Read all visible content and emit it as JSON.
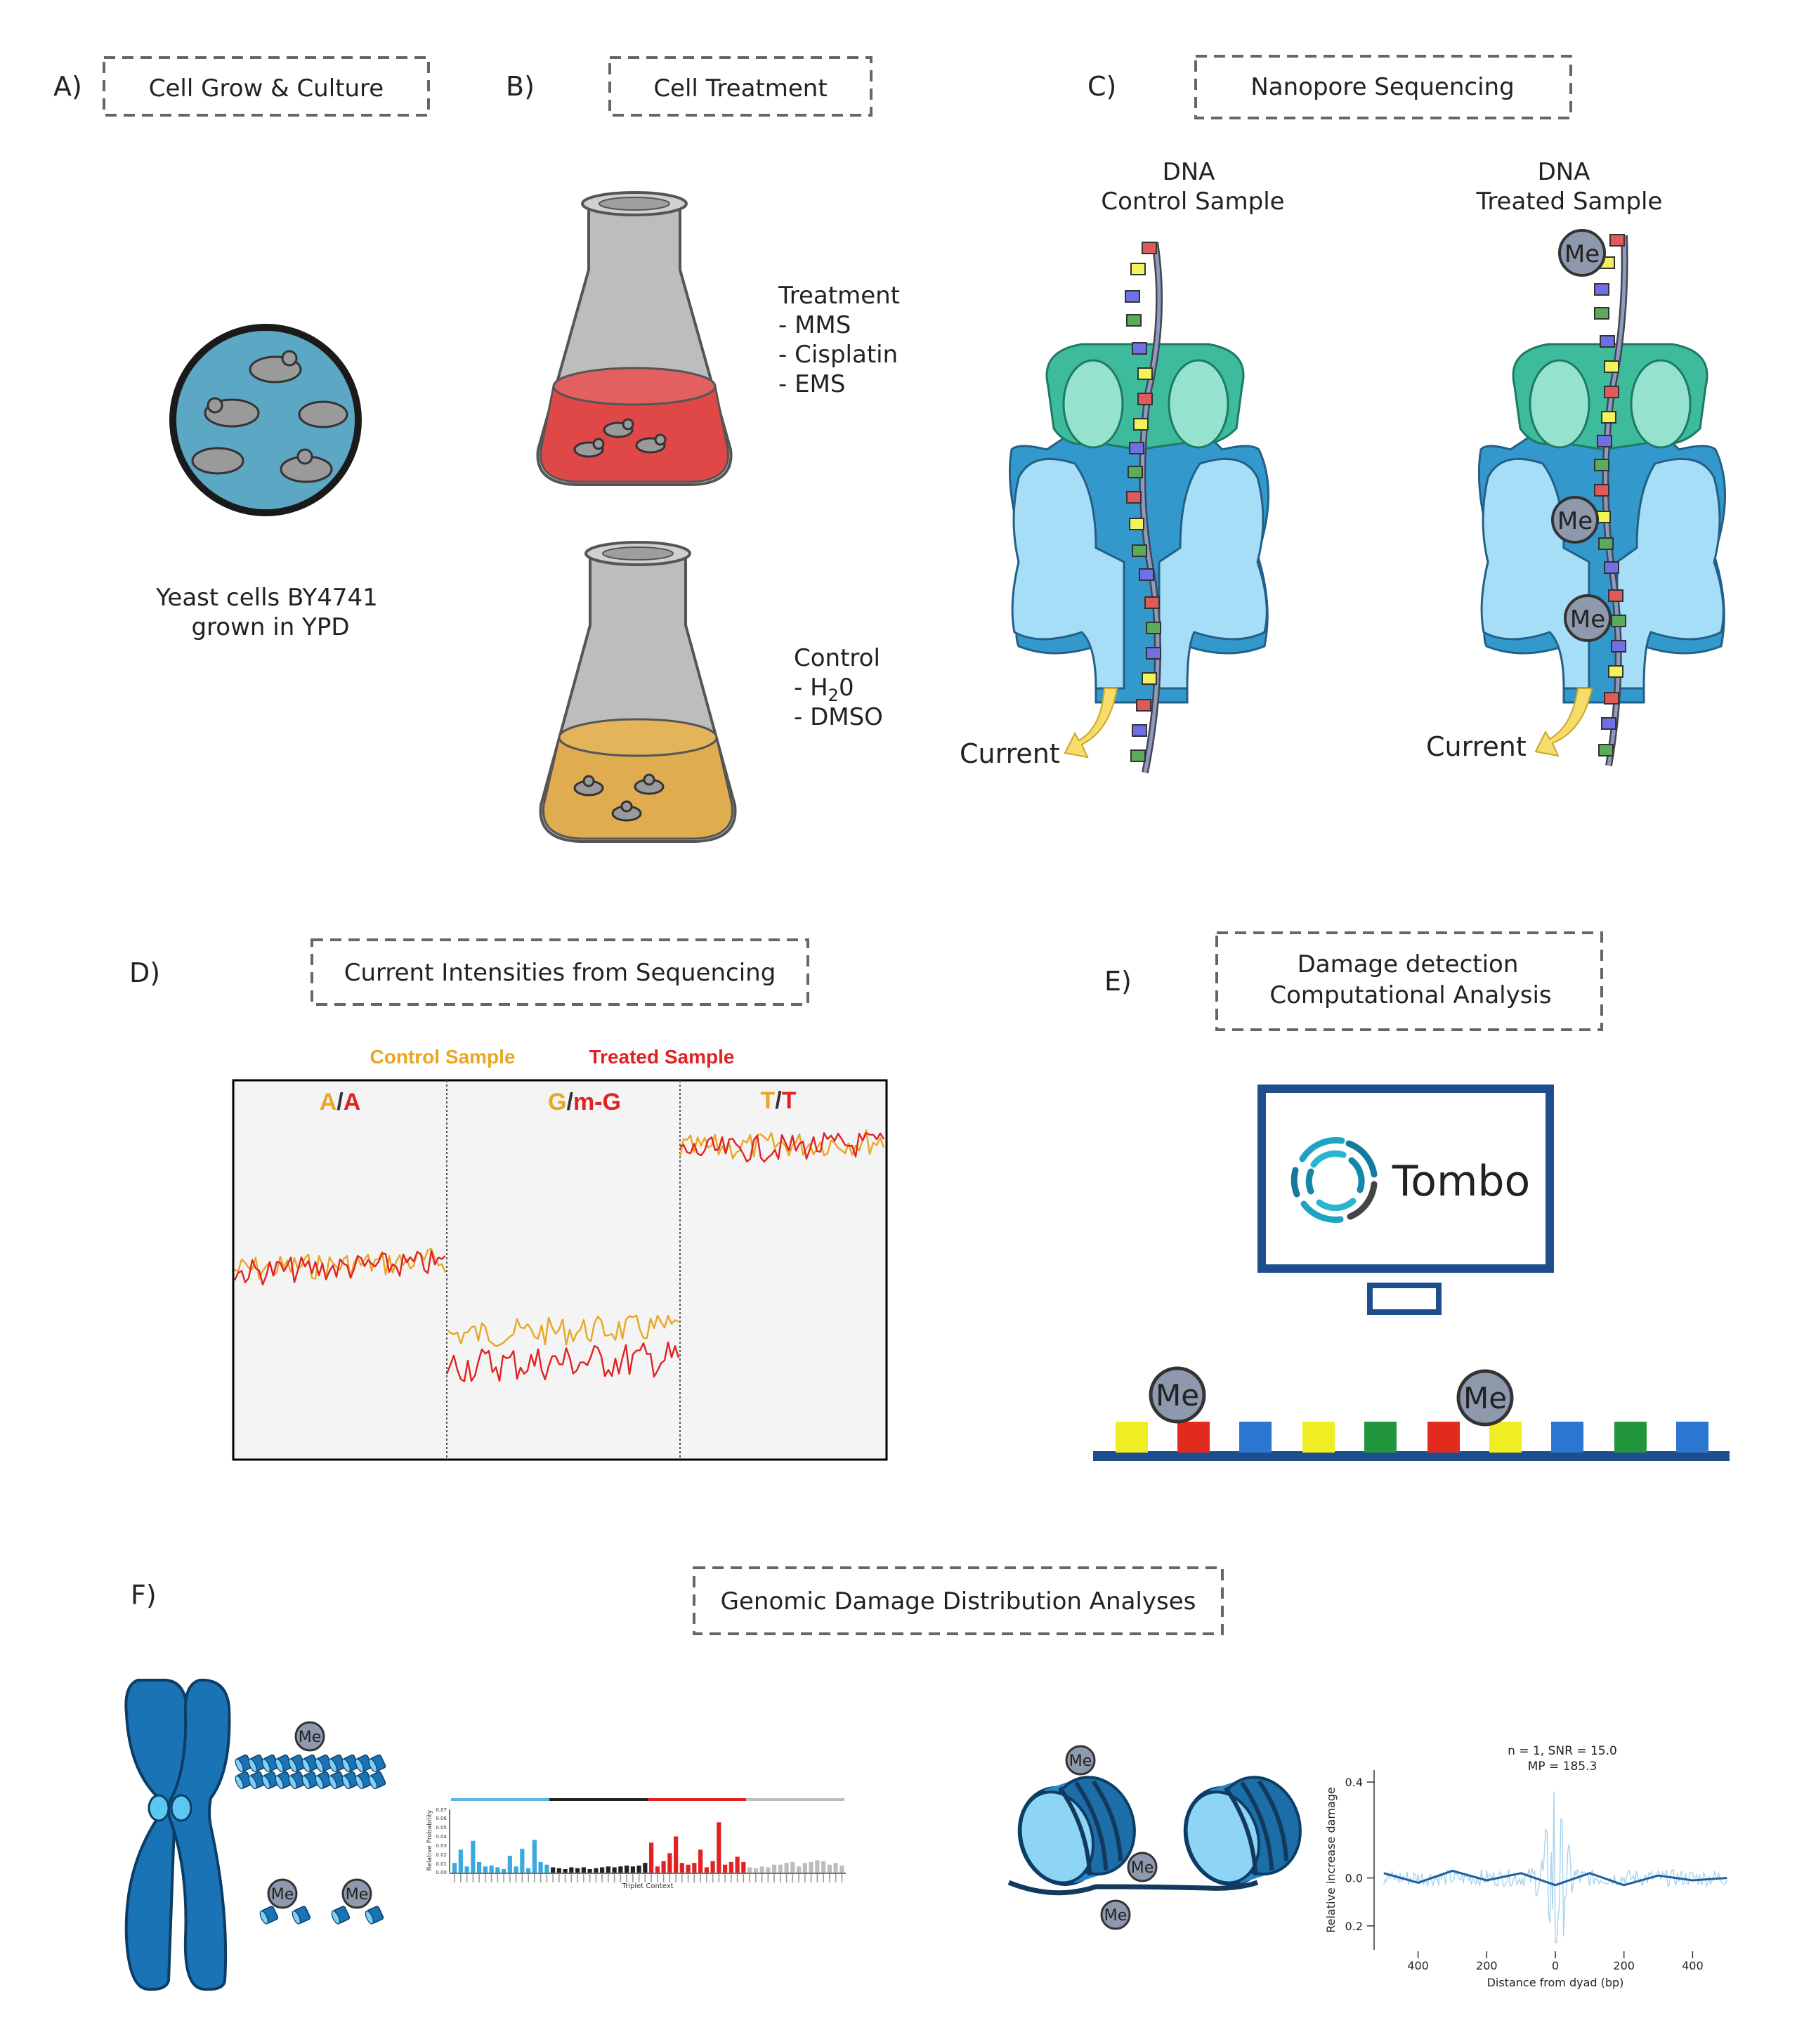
{
  "panels": {
    "a": {
      "letter": "A)",
      "title": "Cell Grow & Culture",
      "caption_line1": "Yeast cells BY4741",
      "caption_line2": "grown in YPD"
    },
    "b": {
      "letter": "B)",
      "title": "Cell Treatment",
      "treatment": {
        "heading": "Treatment",
        "items": [
          "- MMS",
          "- Cisplatin",
          "- EMS"
        ]
      },
      "control": {
        "heading": "Control",
        "item1_prefix": "- H",
        "item1_sub": "2",
        "item1_suffix": "0",
        "item2": "- DMSO"
      }
    },
    "c": {
      "letter": "C)",
      "title": "Nanopore Sequencing",
      "control_line1": "DNA",
      "control_line2": "Control Sample",
      "treated_line1": "DNA",
      "treated_line2": "Treated Sample",
      "current": "Current",
      "me": "Me"
    },
    "d": {
      "letter": "D)",
      "title": "Current Intensities from Sequencing",
      "legend_control": "Control Sample",
      "legend_treated": "Treated Sample",
      "seg1_a": "A",
      "seg1_sep": "/",
      "seg1_b": "A",
      "seg2_a": "G",
      "seg2_sep": "/",
      "seg2_b": "m-G",
      "seg3_a": "T",
      "seg3_sep": "/",
      "seg3_b": "T"
    },
    "e": {
      "letter": "E)",
      "title_line1": "Damage detection",
      "title_line2": "Computational Analysis",
      "software": "Tombo",
      "me": "Me"
    },
    "f": {
      "letter": "F)",
      "title": "Genomic Damage Distribution Analyses",
      "me": "Me",
      "plot_title_line1": "n = 1, SNR = 15.0",
      "plot_title_line2": "MP = 185.3",
      "plot_ylabel": "Relative increase damage",
      "plot_xlabel": "Distance from dyad (bp)",
      "plot_yticks": [
        "0.4",
        "0.2",
        "0.0",
        "0.2"
      ],
      "plot_xticks": [
        "400",
        "200",
        "0",
        "200",
        "400"
      ],
      "spectrum_ylabel": "Relative Probability",
      "spectrum_xlabel": "Triplet Context",
      "spectrum_yticks": [
        "0.07",
        "0.06",
        "0.05",
        "0.04",
        "0.03",
        "0.02",
        "0.01",
        "0.00"
      ]
    }
  },
  "colors": {
    "control": "#e8a623",
    "treated": "#e02222",
    "pore_green": "#3dbb9c",
    "pore_blue": "#3399cc",
    "monitor": "#1f4e8c",
    "chromosome": "#1a73b5"
  },
  "chart_data": [
    {
      "type": "bar",
      "panel": "F-spectrum",
      "xlabel": "Triplet Context",
      "ylabel": "Relative Probability",
      "ylim": [
        0,
        0.07
      ],
      "series": [
        {
          "values": [
            0.011,
            0.026,
            0.007,
            0.036,
            0.012,
            0.007,
            0.008,
            0.006,
            0.004,
            0.019,
            0.007,
            0.027,
            0.005,
            0.037,
            0.012,
            0.009
          ]
        },
        {
          "values": [
            0.006,
            0.005,
            0.004,
            0.006,
            0.005,
            0.006,
            0.004,
            0.005,
            0.006,
            0.007,
            0.006,
            0.007,
            0.008,
            0.007,
            0.008,
            0.011
          ]
        },
        {
          "values": [
            0.034,
            0.007,
            0.013,
            0.022,
            0.041,
            0.011,
            0.009,
            0.011,
            0.026,
            0.006,
            0.013,
            0.057,
            0.009,
            0.012,
            0.018,
            0.012
          ]
        },
        {
          "values": [
            0.006,
            0.005,
            0.007,
            0.006,
            0.009,
            0.009,
            0.011,
            0.012,
            0.007,
            0.011,
            0.012,
            0.014,
            0.013,
            0.009,
            0.011,
            0.008
          ]
        }
      ]
    },
    {
      "type": "line",
      "panel": "F-dyad",
      "title": "n = 1, SNR = 15.0",
      "xlabel": "Distance from dyad (bp)",
      "ylabel": "Relative increase damage",
      "x": [
        -500,
        -400,
        -300,
        -200,
        -100,
        0,
        100,
        200,
        300,
        400,
        500
      ],
      "y": [
        0.02,
        -0.02,
        0.03,
        -0.01,
        0.02,
        -0.03,
        0.02,
        -0.03,
        0.01,
        -0.01,
        0.0
      ],
      "ylim": [
        -0.3,
        0.45
      ],
      "xlim": [
        -520,
        520
      ]
    }
  ]
}
